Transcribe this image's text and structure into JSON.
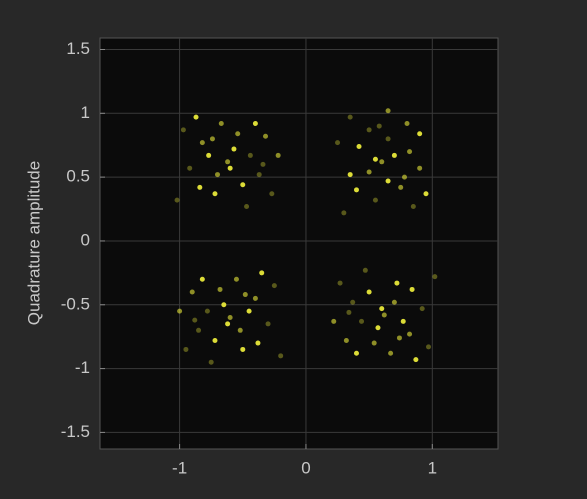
{
  "chart_data": {
    "type": "scatter",
    "ylabel": "Quadrature amplitude",
    "xlim": [
      -1.63,
      1.52
    ],
    "ylim": [
      -1.63,
      1.59
    ],
    "xticks": [
      -1,
      0,
      1
    ],
    "yticks": [
      -1.5,
      -1,
      -0.5,
      0,
      0.5,
      1,
      1.5
    ],
    "grid": true,
    "color": "#e8e83a",
    "x": [
      -0.57,
      -0.82,
      -0.37,
      -0.72,
      -0.32,
      -0.92,
      -0.5,
      -0.67,
      -0.44,
      -0.84,
      -0.62,
      -0.27,
      -0.77,
      -0.54,
      -0.97,
      -0.4,
      -0.7,
      -0.47,
      -0.87,
      -0.22,
      -1.02,
      -0.6,
      -0.74,
      -0.34,
      0.7,
      0.75,
      0.5,
      0.35,
      0.8,
      0.55,
      0.42,
      0.9,
      0.65,
      0.4,
      0.6,
      0.35,
      0.65,
      0.82,
      0.85,
      0.9,
      0.5,
      0.25,
      0.95,
      0.65,
      0.3,
      0.55,
      0.78,
      0.58,
      -0.65,
      -0.4,
      -0.85,
      -0.5,
      -0.9,
      -0.3,
      -0.72,
      -0.55,
      -0.78,
      -0.38,
      -0.6,
      -0.95,
      -0.45,
      -0.68,
      -0.25,
      -0.82,
      -0.52,
      -0.75,
      -0.35,
      -1.0,
      -0.2,
      -0.62,
      -0.48,
      -0.88,
      0.57,
      0.82,
      0.37,
      0.72,
      0.32,
      0.92,
      0.5,
      0.67,
      0.44,
      0.84,
      0.62,
      0.27,
      0.77,
      0.54,
      0.97,
      0.4,
      0.7,
      0.47,
      0.87,
      0.22,
      1.02,
      0.6,
      0.74,
      0.34
    ],
    "values": [
      0.72,
      0.77,
      0.52,
      0.37,
      0.82,
      0.57,
      0.44,
      0.92,
      0.67,
      0.42,
      0.62,
      0.37,
      0.67,
      0.84,
      0.87,
      0.92,
      0.52,
      0.27,
      0.97,
      0.67,
      0.32,
      0.57,
      0.8,
      0.6,
      0.67,
      0.42,
      0.87,
      0.52,
      0.92,
      0.32,
      0.74,
      0.57,
      0.8,
      0.4,
      0.62,
      0.97,
      0.47,
      0.7,
      0.27,
      0.84,
      0.54,
      0.77,
      0.37,
      1.02,
      0.22,
      0.64,
      0.5,
      0.9,
      -0.5,
      -0.45,
      -0.7,
      -0.85,
      -0.4,
      -0.65,
      -0.78,
      -0.3,
      -0.55,
      -0.8,
      -0.6,
      -0.85,
      -0.55,
      -0.38,
      -0.35,
      -0.3,
      -0.7,
      -0.95,
      -0.25,
      -0.55,
      -0.9,
      -0.65,
      -0.42,
      -0.62,
      -0.68,
      -0.73,
      -0.48,
      -0.33,
      -0.78,
      -0.53,
      -0.4,
      -0.88,
      -0.63,
      -0.38,
      -0.58,
      -0.33,
      -0.63,
      -0.8,
      -0.83,
      -0.88,
      -0.48,
      -0.23,
      -0.93,
      -0.63,
      -0.28,
      -0.53,
      -0.76,
      -0.56
    ]
  }
}
